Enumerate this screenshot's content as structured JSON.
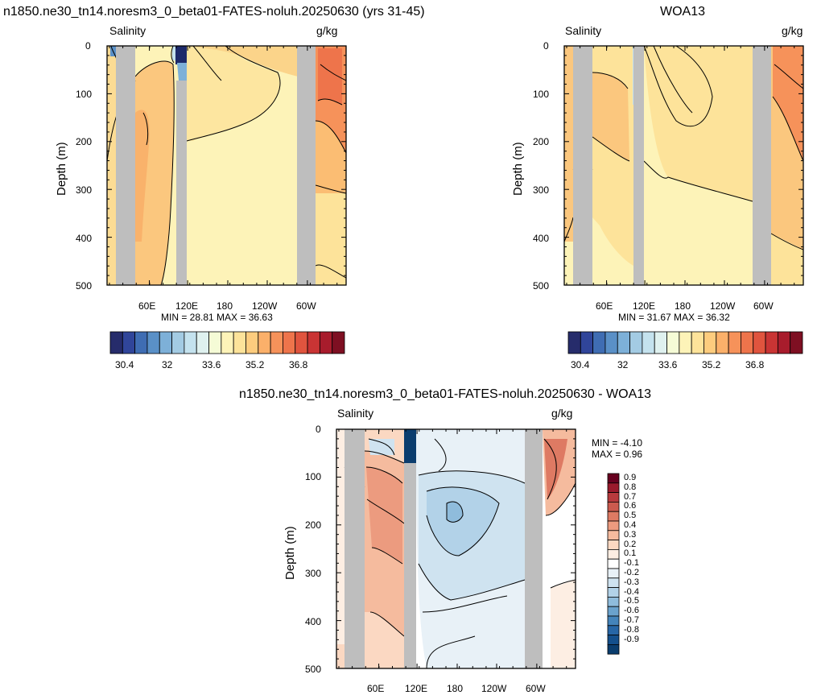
{
  "chart_data": [
    {
      "type": "heatmap",
      "title": "n1850.ne30_tn14.noresm3_0_beta01-FATES-noluh.20250630 (yrs 31-45)",
      "left_label": "Salinity",
      "right_label": "g/kg",
      "ylabel": "Depth (m)",
      "y_ticks": [
        "0",
        "100",
        "200",
        "300",
        "400",
        "500"
      ],
      "ylim": [
        0,
        500
      ],
      "x_ticks": [
        "60E",
        "120E",
        "180",
        "120W",
        "60W"
      ],
      "stats": "MIN =  28.81  MAX =  36.63",
      "colorbar_labels": [
        "30.4",
        "32",
        "33.6",
        "35.2",
        "36.8"
      ],
      "colorbar_colors": [
        "#262c6b",
        "#30459a",
        "#3f6db3",
        "#5a90c7",
        "#7db0d8",
        "#a3cbe3",
        "#c4e2ee",
        "#dff1ef",
        "#f5fbd6",
        "#fdf3b8",
        "#fde39a",
        "#fdcc7e",
        "#fbb06a",
        "#f6925a",
        "#ee744b",
        "#e0543e",
        "#c93434",
        "#a81c2c",
        "#7e0f22"
      ],
      "description_palette": {
        "land": "#bebebe"
      }
    },
    {
      "type": "heatmap",
      "title": "WOA13",
      "left_label": "Salinity",
      "right_label": "g/kg",
      "ylabel": "Depth (m)",
      "y_ticks": [
        "0",
        "100",
        "200",
        "300",
        "400",
        "500"
      ],
      "ylim": [
        0,
        500
      ],
      "x_ticks": [
        "60E",
        "120E",
        "180",
        "120W",
        "60W"
      ],
      "stats": "MIN =  31.67  MAX =  36.32",
      "colorbar_labels": [
        "30.4",
        "32",
        "33.6",
        "35.2",
        "36.8"
      ]
    },
    {
      "type": "heatmap",
      "title": "n1850.ne30_tn14.noresm3_0_beta01-FATES-noluh.20250630 - WOA13",
      "left_label": "Salinity",
      "right_label": "g/kg",
      "ylabel": "Depth (m)",
      "y_ticks": [
        "0",
        "100",
        "200",
        "300",
        "400",
        "500"
      ],
      "ylim": [
        0,
        500
      ],
      "x_ticks": [
        "60E",
        "120E",
        "180",
        "120W",
        "60W"
      ],
      "stats_min": "MIN =  -4.10",
      "stats_max": "MAX =   0.96",
      "colorbar_labels": [
        "0.9",
        "0.8",
        "0.7",
        "0.6",
        "0.5",
        "0.4",
        "0.3",
        "0.2",
        "0.1",
        "-0.1",
        "-0.2",
        "-0.3",
        "-0.4",
        "-0.5",
        "-0.6",
        "-0.7",
        "-0.8",
        "-0.9"
      ],
      "colorbar_colors": [
        "#67001f",
        "#9a1a2c",
        "#b83a3d",
        "#cc5a4e",
        "#de7a63",
        "#ec9b7f",
        "#f5bb9e",
        "#fbd8c2",
        "#fdeee3",
        "#ffffff",
        "#e8f1f7",
        "#cfe3f0",
        "#b2d2e8",
        "#8fbcdc",
        "#6aa2cd",
        "#4484bb",
        "#2766a6",
        "#144f8c",
        "#0b3d6e"
      ]
    }
  ]
}
